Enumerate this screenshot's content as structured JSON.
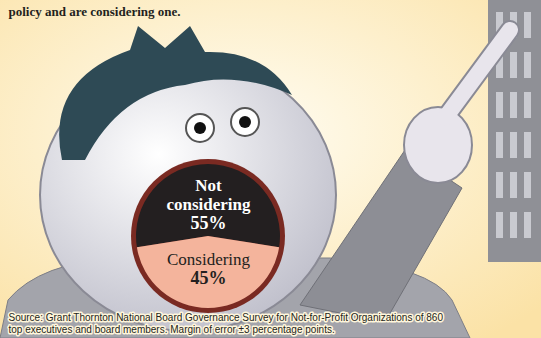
{
  "chart_data": {
    "type": "pie",
    "subtitle": "policy and are considering one.",
    "categories": [
      "Not considering",
      "Considering"
    ],
    "values": [
      55,
      45
    ],
    "value_labels": [
      "55%",
      "45%"
    ],
    "colors": [
      "#231f20",
      "#f4b49c"
    ],
    "data_labels": true,
    "source": "Source: Grant Thornton National Board Governance Survey for Not-for-Profit Organizations of 860 top executives and board members. Margin of error ±3 percentage points."
  }
}
